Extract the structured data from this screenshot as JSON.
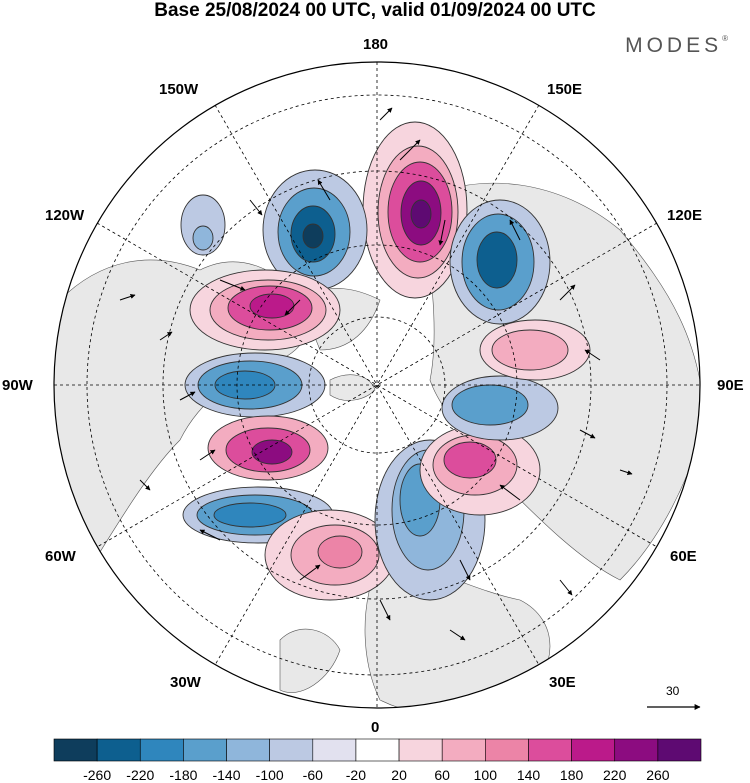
{
  "header": {
    "title": "Base 25/08/2024 00 UTC, valid 01/09/2024 00 UTC",
    "brand": "MODES",
    "brand_mark": "®"
  },
  "map": {
    "projection": "north-polar-stereographic",
    "longitude_labels": {
      "top": "180",
      "top_right": "150E",
      "upper_right": "120E",
      "right": "90E",
      "lower_right": "60E",
      "bottom_right": "30E",
      "bottom": "0",
      "bottom_left": "30W",
      "lower_left": "60W",
      "left": "90W",
      "upper_left": "120W",
      "top_left": "150W"
    },
    "reference_vector": {
      "value": "30"
    },
    "colors": {
      "land": "#e8e8e8",
      "ocean": "#ffffff",
      "negative_max": "#0f4a6e",
      "positive_max": "#5b0c7a"
    }
  },
  "colorbar": {
    "labels": [
      "-260",
      "-220",
      "-180",
      "-140",
      "-100",
      "-60",
      "-20",
      "20",
      "60",
      "100",
      "140",
      "180",
      "220",
      "260"
    ],
    "colors": [
      "#0e3d5c",
      "#0d5f8f",
      "#2f86bd",
      "#5a9fcc",
      "#8fb6db",
      "#bcc9e3",
      "#e2e1ef",
      "#ffffff",
      "#f7d5de",
      "#f3acc0",
      "#ec84a7",
      "#dc4d9c",
      "#bb1a8a",
      "#8c0c80",
      "#5e0a72"
    ]
  }
}
